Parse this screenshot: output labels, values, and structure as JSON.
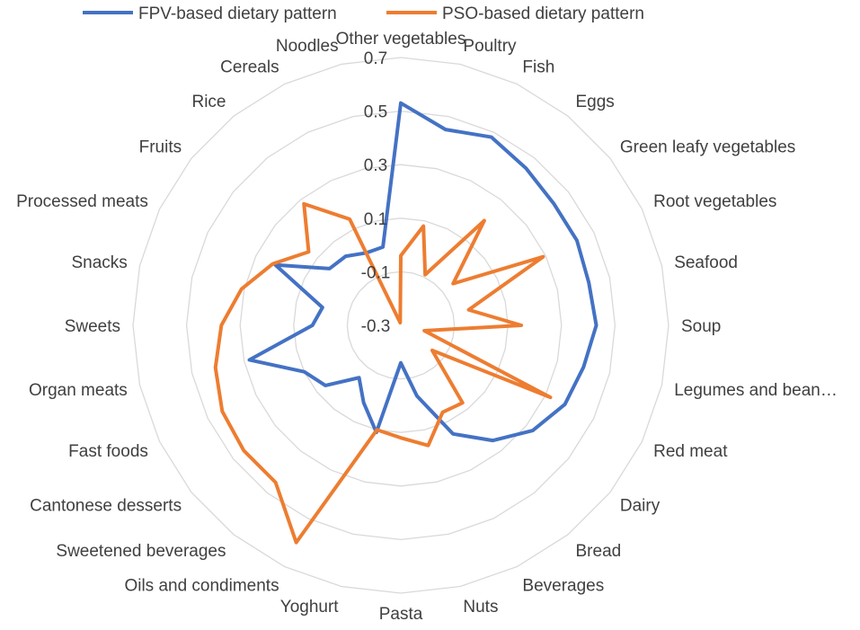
{
  "chart_data": {
    "type": "radar",
    "title": "",
    "categories": [
      "Other vegetables",
      "Poultry",
      "Fish",
      "Eggs",
      "Green leafy vegetables",
      "Root vegetables",
      "Seafood",
      "Soup",
      "Legumes and bean…",
      "Red meat",
      "Dairy",
      "Bread",
      "Beverages",
      "Nuts",
      "Pasta",
      "Yoghurt",
      "Oils and condiments",
      "Sweetened beverages",
      "Cantonese desserts",
      "Fast foods",
      "Organ meats",
      "Sweets",
      "Snacks",
      "Processed meats",
      "Fruits",
      "Rice",
      "Cereals",
      "Noodles"
    ],
    "series": [
      {
        "name": "FPV-based dietary pattern",
        "color": "#4472C4",
        "values": [
          0.53,
          0.45,
          0.48,
          0.45,
          0.43,
          0.43,
          0.42,
          0.43,
          0.4,
          0.38,
          0.33,
          0.25,
          0.15,
          -0.03,
          -0.16,
          0.11,
          0.02,
          -0.05,
          0.06,
          0.1,
          0.28,
          0.03,
          0.0,
          0.22,
          0.04,
          0.03,
          0.0,
          0.0
        ]
      },
      {
        "name": "PSO-based dietary pattern",
        "color": "#ED7D31",
        "values": [
          -0.04,
          0.08,
          -0.09,
          0.2,
          -0.05,
          0.29,
          -0.04,
          0.15,
          -0.21,
          0.32,
          -0.15,
          0.07,
          0.06,
          0.16,
          0.12,
          0.1,
          0.6,
          0.45,
          0.45,
          0.44,
          0.41,
          0.37,
          0.31,
          0.23,
          0.14,
          0.28,
          0.14,
          -0.29
        ]
      }
    ],
    "rlim": [
      -0.3,
      0.7
    ],
    "ticks": [
      "-0.3",
      "-0.1",
      "0.1",
      "0.3",
      "0.5",
      "0.7"
    ],
    "legend_position": "top",
    "grid": true
  }
}
